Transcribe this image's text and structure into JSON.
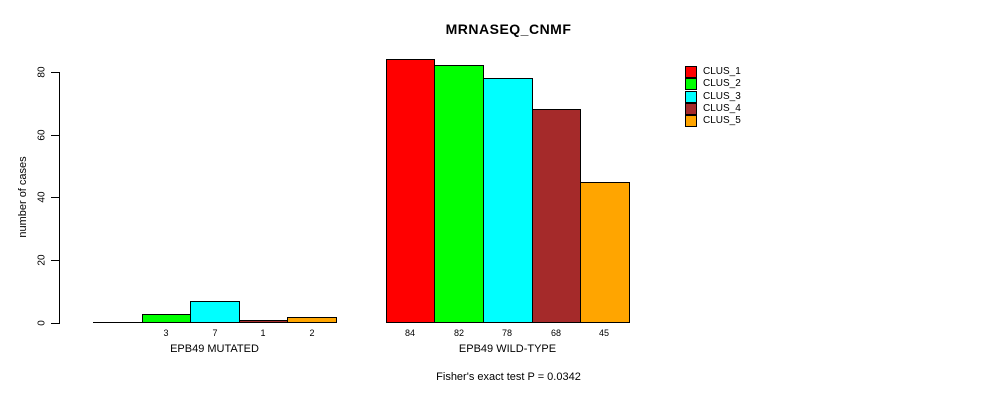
{
  "chart_data": {
    "type": "bar",
    "title": "MRNASEQ_CNMF",
    "ylabel": "number of cases",
    "xlabel": "",
    "ylim": [
      0,
      84
    ],
    "yticks": [
      0,
      20,
      40,
      60,
      80
    ],
    "grid": false,
    "legend_position": "right",
    "legend": [
      {
        "label": "CLUS_1",
        "color": "#FF0000"
      },
      {
        "label": "CLUS_2",
        "color": "#00FF00"
      },
      {
        "label": "CLUS_3",
        "color": "#00FFFF"
      },
      {
        "label": "CLUS_4",
        "color": "#A52A2A"
      },
      {
        "label": "CLUS_5",
        "color": "#FFA500"
      }
    ],
    "series_colors": [
      "#FF0000",
      "#00FF00",
      "#00FFFF",
      "#A52A2A",
      "#FFA500"
    ],
    "groups": [
      {
        "label": "EPB49 MUTATED",
        "values": [
          0,
          3,
          7,
          1,
          2
        ],
        "value_labels": [
          "",
          "3",
          "7",
          "1",
          "2"
        ]
      },
      {
        "label": "EPB49 WILD-TYPE",
        "values": [
          84,
          82,
          78,
          68,
          45
        ],
        "value_labels": [
          "84",
          "82",
          "78",
          "68",
          "45"
        ]
      }
    ],
    "annotation": "Fisher's exact test P = 0.0342",
    "colors": {
      "background": "#FFFFFF",
      "axis": "#000000",
      "text": "#000000"
    }
  }
}
